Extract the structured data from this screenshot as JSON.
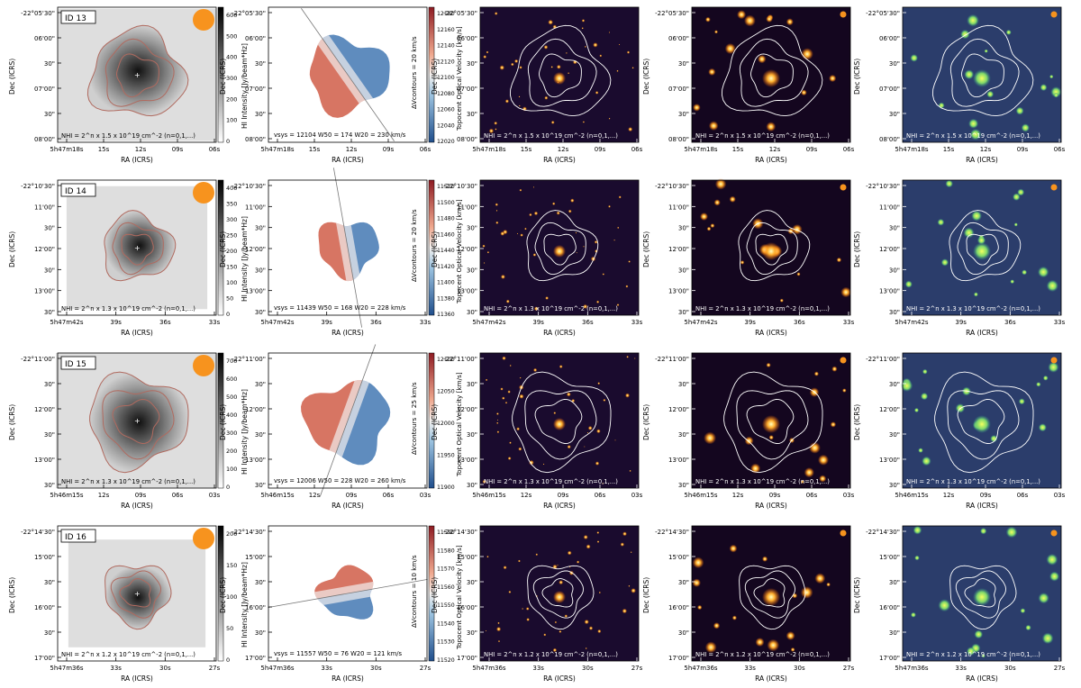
{
  "figure": {
    "rows": [
      {
        "id_label": "ID 13",
        "dec_ticks": [
          "-22°05'30\"",
          "06'00\"",
          "30\"",
          "07'00\"",
          "30\"",
          "08'00\""
        ],
        "ra_ticks": [
          "5h47m18s",
          "15s",
          "12s",
          "09s",
          "06s"
        ],
        "mom0_cbar_ticks": [
          "0",
          "100",
          "200",
          "300",
          "400",
          "500",
          "600"
        ],
        "mom1_cbar_ticks": [
          "12020",
          "12040",
          "12060",
          "12080",
          "12100",
          "12120",
          "12140",
          "12160",
          "12180"
        ],
        "column_density_text": "NHI = 2^n x 1.5 x 10^19 cm^-2 (n=0,1,...)",
        "contour_spacing": "ΔVcontours = 20 km/s",
        "kinematics_text": "vsys = 12104   W50 = 174   W20 = 230 km/s",
        "vel_colors": {
          "approaching": "#2a66a8",
          "receding": "#c9472f"
        }
      },
      {
        "id_label": "ID 14",
        "dec_ticks": [
          "-22°10'30\"",
          "11'00\"",
          "30\"",
          "12'00\"",
          "30\"",
          "13'00\"",
          "30\""
        ],
        "ra_ticks": [
          "5h47m42s",
          "39s",
          "36s",
          "33s"
        ],
        "mom0_cbar_ticks": [
          "0",
          "50",
          "100",
          "150",
          "200",
          "250",
          "300",
          "350",
          "400"
        ],
        "mom1_cbar_ticks": [
          "11360",
          "11380",
          "11400",
          "11420",
          "11440",
          "11460",
          "11480",
          "11500",
          "11520"
        ],
        "column_density_text": "NHI = 2^n x 1.3 x 10^19 cm^-2 (n=0,1,...)",
        "contour_spacing": "ΔVcontours = 20 km/s",
        "kinematics_text": "vsys = 11439   W50 = 168   W20 = 228 km/s",
        "vel_colors": {
          "approaching": "#2a66a8",
          "receding": "#c9472f"
        }
      },
      {
        "id_label": "ID 15",
        "dec_ticks": [
          "-22°11'00\"",
          "30\"",
          "12'00\"",
          "30\"",
          "13'00\"",
          "30\""
        ],
        "ra_ticks": [
          "5h46m15s",
          "12s",
          "09s",
          "06s",
          "03s"
        ],
        "mom0_cbar_ticks": [
          "0",
          "100",
          "200",
          "300",
          "400",
          "500",
          "600",
          "700"
        ],
        "mom1_cbar_ticks": [
          "11900",
          "11950",
          "12000",
          "12050",
          "12100"
        ],
        "column_density_text": "NHI = 2^n x 1.3 x 10^19 cm^-2 (n=0,1,...)",
        "contour_spacing": "ΔVcontours = 25 km/s",
        "kinematics_text": "vsys = 12006   W50 = 228   W20 = 260 km/s",
        "vel_colors": {
          "approaching": "#2a66a8",
          "receding": "#c9472f"
        }
      },
      {
        "id_label": "ID 16",
        "dec_ticks": [
          "-22°14'30\"",
          "15'00\"",
          "30\"",
          "16'00\"",
          "30\"",
          "17'00\""
        ],
        "ra_ticks": [
          "5h47m36s",
          "33s",
          "30s",
          "27s"
        ],
        "mom0_cbar_ticks": [
          "0",
          "50",
          "100",
          "150",
          "200"
        ],
        "mom1_cbar_ticks": [
          "11520",
          "11530",
          "11540",
          "11550",
          "11560",
          "11570",
          "11580",
          "11590"
        ],
        "column_density_text": "NHI = 2^n x 1.2 x 10^19 cm^-2 (n=0,1,...)",
        "contour_spacing": "ΔVcontours = 10 km/s",
        "kinematics_text": "vsys = 11557   W50 = 76   W20 = 121 km/s",
        "vel_colors": {
          "approaching": "#2a66a8",
          "receding": "#c9472f"
        }
      }
    ],
    "labels": {
      "ra_axis": "RA (ICRS)",
      "dec_axis": "Dec (ICRS)",
      "mom0_cbar_label": "HI Intensity [Jy/beam*Hz]",
      "mom1_cbar_label": "Topocent Optical Velocity [km/s]"
    },
    "colors": {
      "beam": "#f7931e",
      "mom0_contour": "#b06a5f",
      "overlay_contour": "#ffffff",
      "optical_bg": "#1a0b2e",
      "infrared_bg": "#14061f",
      "radio_bg": "#2b3d6b",
      "radio_blob": "#d8ea3a"
    },
    "icons": {
      "beam_marker": "filled-circle",
      "source_center": "cross-marker"
    }
  }
}
